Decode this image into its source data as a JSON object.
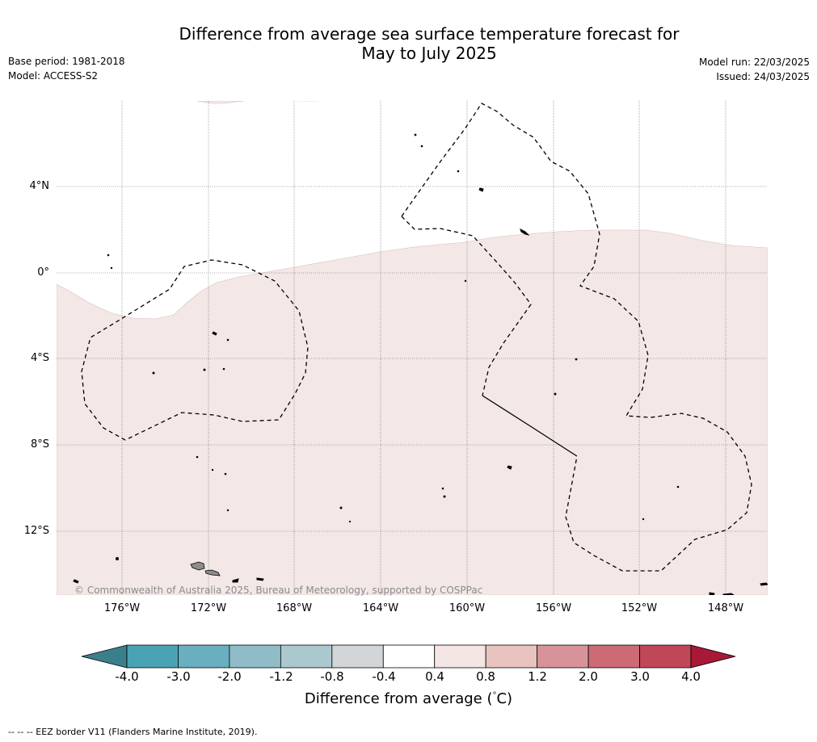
{
  "header": {
    "title_line1": "Difference from average sea surface temperature forecast for",
    "title_line2": "May to July 2025",
    "base_period": "Base period: 1981-2018",
    "model": "Model: ACCESS-S2",
    "model_run": "Model run: 22/03/2025",
    "issued": "Issued: 24/03/2025"
  },
  "map": {
    "latitude_labels": [
      "4°N",
      "0°",
      "4°S",
      "8°S",
      "12°S"
    ],
    "longitude_labels": [
      "176°W",
      "172°W",
      "168°W",
      "164°W",
      "160°W",
      "156°W",
      "152°W",
      "148°W"
    ],
    "credit": "© Commonwealth of Australia 2025, Bureau of Meteorology, supported by COSPPac",
    "anomaly_fill_color": "#f4e8e7",
    "land_color": "#8c8c8c",
    "eez_line_style": "dashed"
  },
  "colorbar": {
    "ticks": [
      "-4.0",
      "-3.0",
      "-2.0",
      "-1.2",
      "-0.8",
      "-0.4",
      "0.4",
      "0.8",
      "1.2",
      "2.0",
      "3.0",
      "4.0"
    ],
    "colors": [
      "#3b7f8c",
      "#4aa3b5",
      "#6aafbf",
      "#8fbcc7",
      "#abc8ce",
      "#d3d6d8",
      "#ffffff",
      "#f3e6e4",
      "#e8c3bf",
      "#d8939a",
      "#cc6b76",
      "#c04757",
      "#a81837"
    ],
    "label": "Difference from average (",
    "label_unit": "C)",
    "label_degree": "°"
  },
  "footer": {
    "eez_note": "--  --  -- EEZ border V11 (Flanders Marine Institute, 2019)."
  }
}
